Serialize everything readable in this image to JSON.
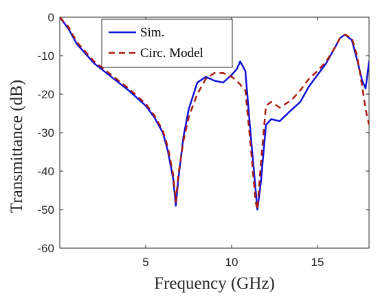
{
  "chart_data": {
    "type": "line",
    "xlabel": "Frequency (GHz)",
    "ylabel": "Transmittance (dB)",
    "xlim": [
      0,
      18
    ],
    "ylim": [
      -60,
      0
    ],
    "xticks": [
      5,
      10,
      15
    ],
    "yticks": [
      0,
      -10,
      -20,
      -30,
      -40,
      -50,
      -60
    ],
    "xtick_labels": [
      "5",
      "10",
      "15"
    ],
    "ytick_labels": [
      "0",
      "-10",
      "-20",
      "-30",
      "-40",
      "-50",
      "-60"
    ],
    "grid": false,
    "legend_position": "top-left",
    "series": [
      {
        "name": "Sim.",
        "color": "#1010d8",
        "line_style": "solid",
        "x": [
          0,
          0.5,
          1,
          2,
          3,
          4,
          5,
          5.5,
          6,
          6.3,
          6.6,
          6.75,
          6.9,
          7.2,
          7.5,
          8,
          8.5,
          9,
          9.5,
          10,
          10.3,
          10.5,
          10.8,
          11.1,
          11.4,
          11.5,
          11.7,
          12,
          12.3,
          12.8,
          13.5,
          14,
          14.5,
          15,
          15.5,
          16,
          16.3,
          16.6,
          17,
          17.3,
          17.6,
          17.8,
          18
        ],
        "y": [
          0,
          -3,
          -7,
          -12,
          -15.5,
          -19,
          -23,
          -26,
          -30,
          -35,
          -42,
          -49,
          -42,
          -31,
          -24,
          -17,
          -15.5,
          -16.5,
          -17,
          -15,
          -13.5,
          -11.5,
          -14,
          -30,
          -45,
          -50,
          -43,
          -28,
          -26.5,
          -27,
          -24,
          -22,
          -18,
          -15,
          -12,
          -8,
          -5.5,
          -4.5,
          -6,
          -11,
          -16.5,
          -18.5,
          -11.5
        ]
      },
      {
        "name": "Circ. Model",
        "color": "#a81c0e",
        "line_style": "dashed",
        "x": [
          0,
          0.5,
          1,
          2,
          3,
          4,
          5,
          5.5,
          6,
          6.3,
          6.6,
          6.75,
          6.9,
          7.2,
          7.5,
          8,
          8.5,
          9,
          9.5,
          10,
          10.3,
          10.5,
          10.8,
          11.1,
          11.4,
          11.5,
          11.7,
          12,
          12.3,
          12.8,
          13.5,
          14,
          14.5,
          15,
          15.5,
          16,
          16.3,
          16.6,
          17,
          17.3,
          17.6,
          17.8,
          18
        ],
        "y": [
          0,
          -2.5,
          -6.5,
          -11.5,
          -15,
          -18.5,
          -22.5,
          -25.5,
          -29.5,
          -34,
          -41,
          -48,
          -41,
          -32,
          -26,
          -20,
          -16,
          -14.5,
          -14.5,
          -15.5,
          -16.5,
          -17.5,
          -19,
          -33,
          -48,
          -50,
          -38,
          -23,
          -22,
          -23.5,
          -21.5,
          -19,
          -16,
          -14,
          -11.5,
          -8,
          -5.5,
          -4.5,
          -5.5,
          -10,
          -18,
          -24,
          -28
        ]
      }
    ]
  }
}
